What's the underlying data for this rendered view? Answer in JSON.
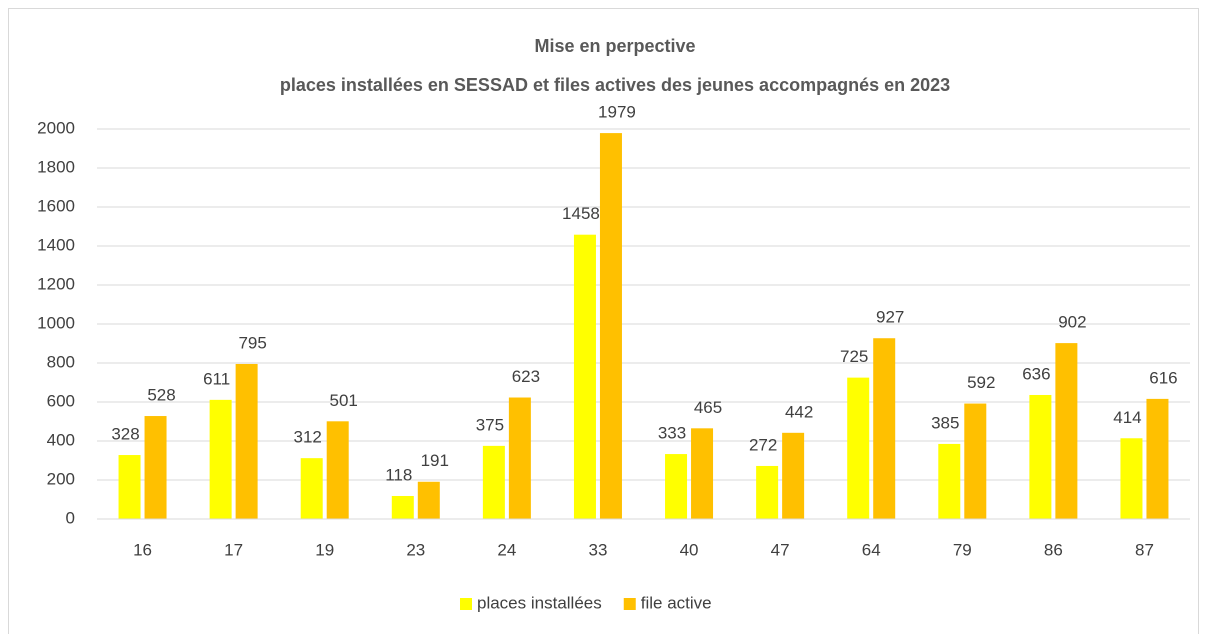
{
  "chart_data": {
    "type": "bar",
    "title": "Mise en perpective",
    "subtitle": "places installées en SESSAD et files actives des jeunes accompagnés en 2023",
    "categories": [
      "16",
      "17",
      "19",
      "23",
      "24",
      "33",
      "40",
      "47",
      "64",
      "79",
      "86",
      "87"
    ],
    "series": [
      {
        "name": "places installées",
        "color": "#ffff00",
        "values": [
          328,
          611,
          312,
          118,
          375,
          1458,
          333,
          272,
          725,
          385,
          636,
          414
        ]
      },
      {
        "name": "file active",
        "color": "#ffc000",
        "values": [
          528,
          795,
          501,
          191,
          623,
          1979,
          465,
          442,
          927,
          592,
          902,
          616
        ]
      }
    ],
    "ylim": [
      0,
      2000
    ],
    "yticks": [
      0,
      200,
      400,
      600,
      800,
      1000,
      1200,
      1400,
      1600,
      1800,
      2000
    ],
    "grid": true,
    "legend": "bottom"
  }
}
